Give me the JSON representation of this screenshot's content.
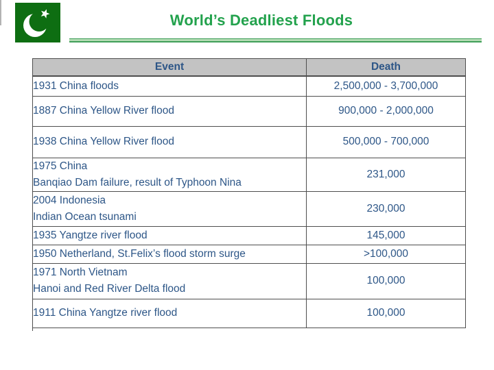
{
  "slide": {
    "flag": {
      "country": "pakistan-flag",
      "green": "#0e6e12",
      "symbol": "crescent-and-star"
    },
    "title": {
      "text": "World’s Deadliest Floods",
      "color": "#23a24d"
    },
    "underline_color": "#3f9e58",
    "table": {
      "header": {
        "event": "Event",
        "death": "Death",
        "background": "#c3c3c3"
      },
      "text_color": "#2d5687",
      "border_color": "#4d4d4d",
      "rows": [
        {
          "event_lines": [
            "1931 China floods"
          ],
          "death": "2,500,000 - 3,700,000"
        },
        {
          "event_lines": [
            "1887 China Yellow River flood"
          ],
          "death": "900,000 - 2,000,000"
        },
        {
          "event_lines": [
            "1938 China Yellow River flood"
          ],
          "death": "500,000 - 700,000"
        },
        {
          "event_lines": [
            "1975 China",
            "Banqiao Dam failure, result of Typhoon Nina"
          ],
          "death": "231,000"
        },
        {
          "event_lines": [
            "2004 Indonesia",
            "Indian Ocean tsunami"
          ],
          "death": "230,000"
        },
        {
          "event_lines": [
            "1935 Yangtze river flood"
          ],
          "death": "145,000"
        },
        {
          "event_lines": [
            "1950 Netherland, St.Felix’s flood storm surge"
          ],
          "death": ">100,000"
        },
        {
          "event_lines": [
            "1971 North Vietnam",
            "Hanoi and Red River Delta flood"
          ],
          "death": "100,000"
        },
        {
          "event_lines": [
            "1911 China Yangtze river flood"
          ],
          "death": "100,000"
        }
      ]
    }
  }
}
